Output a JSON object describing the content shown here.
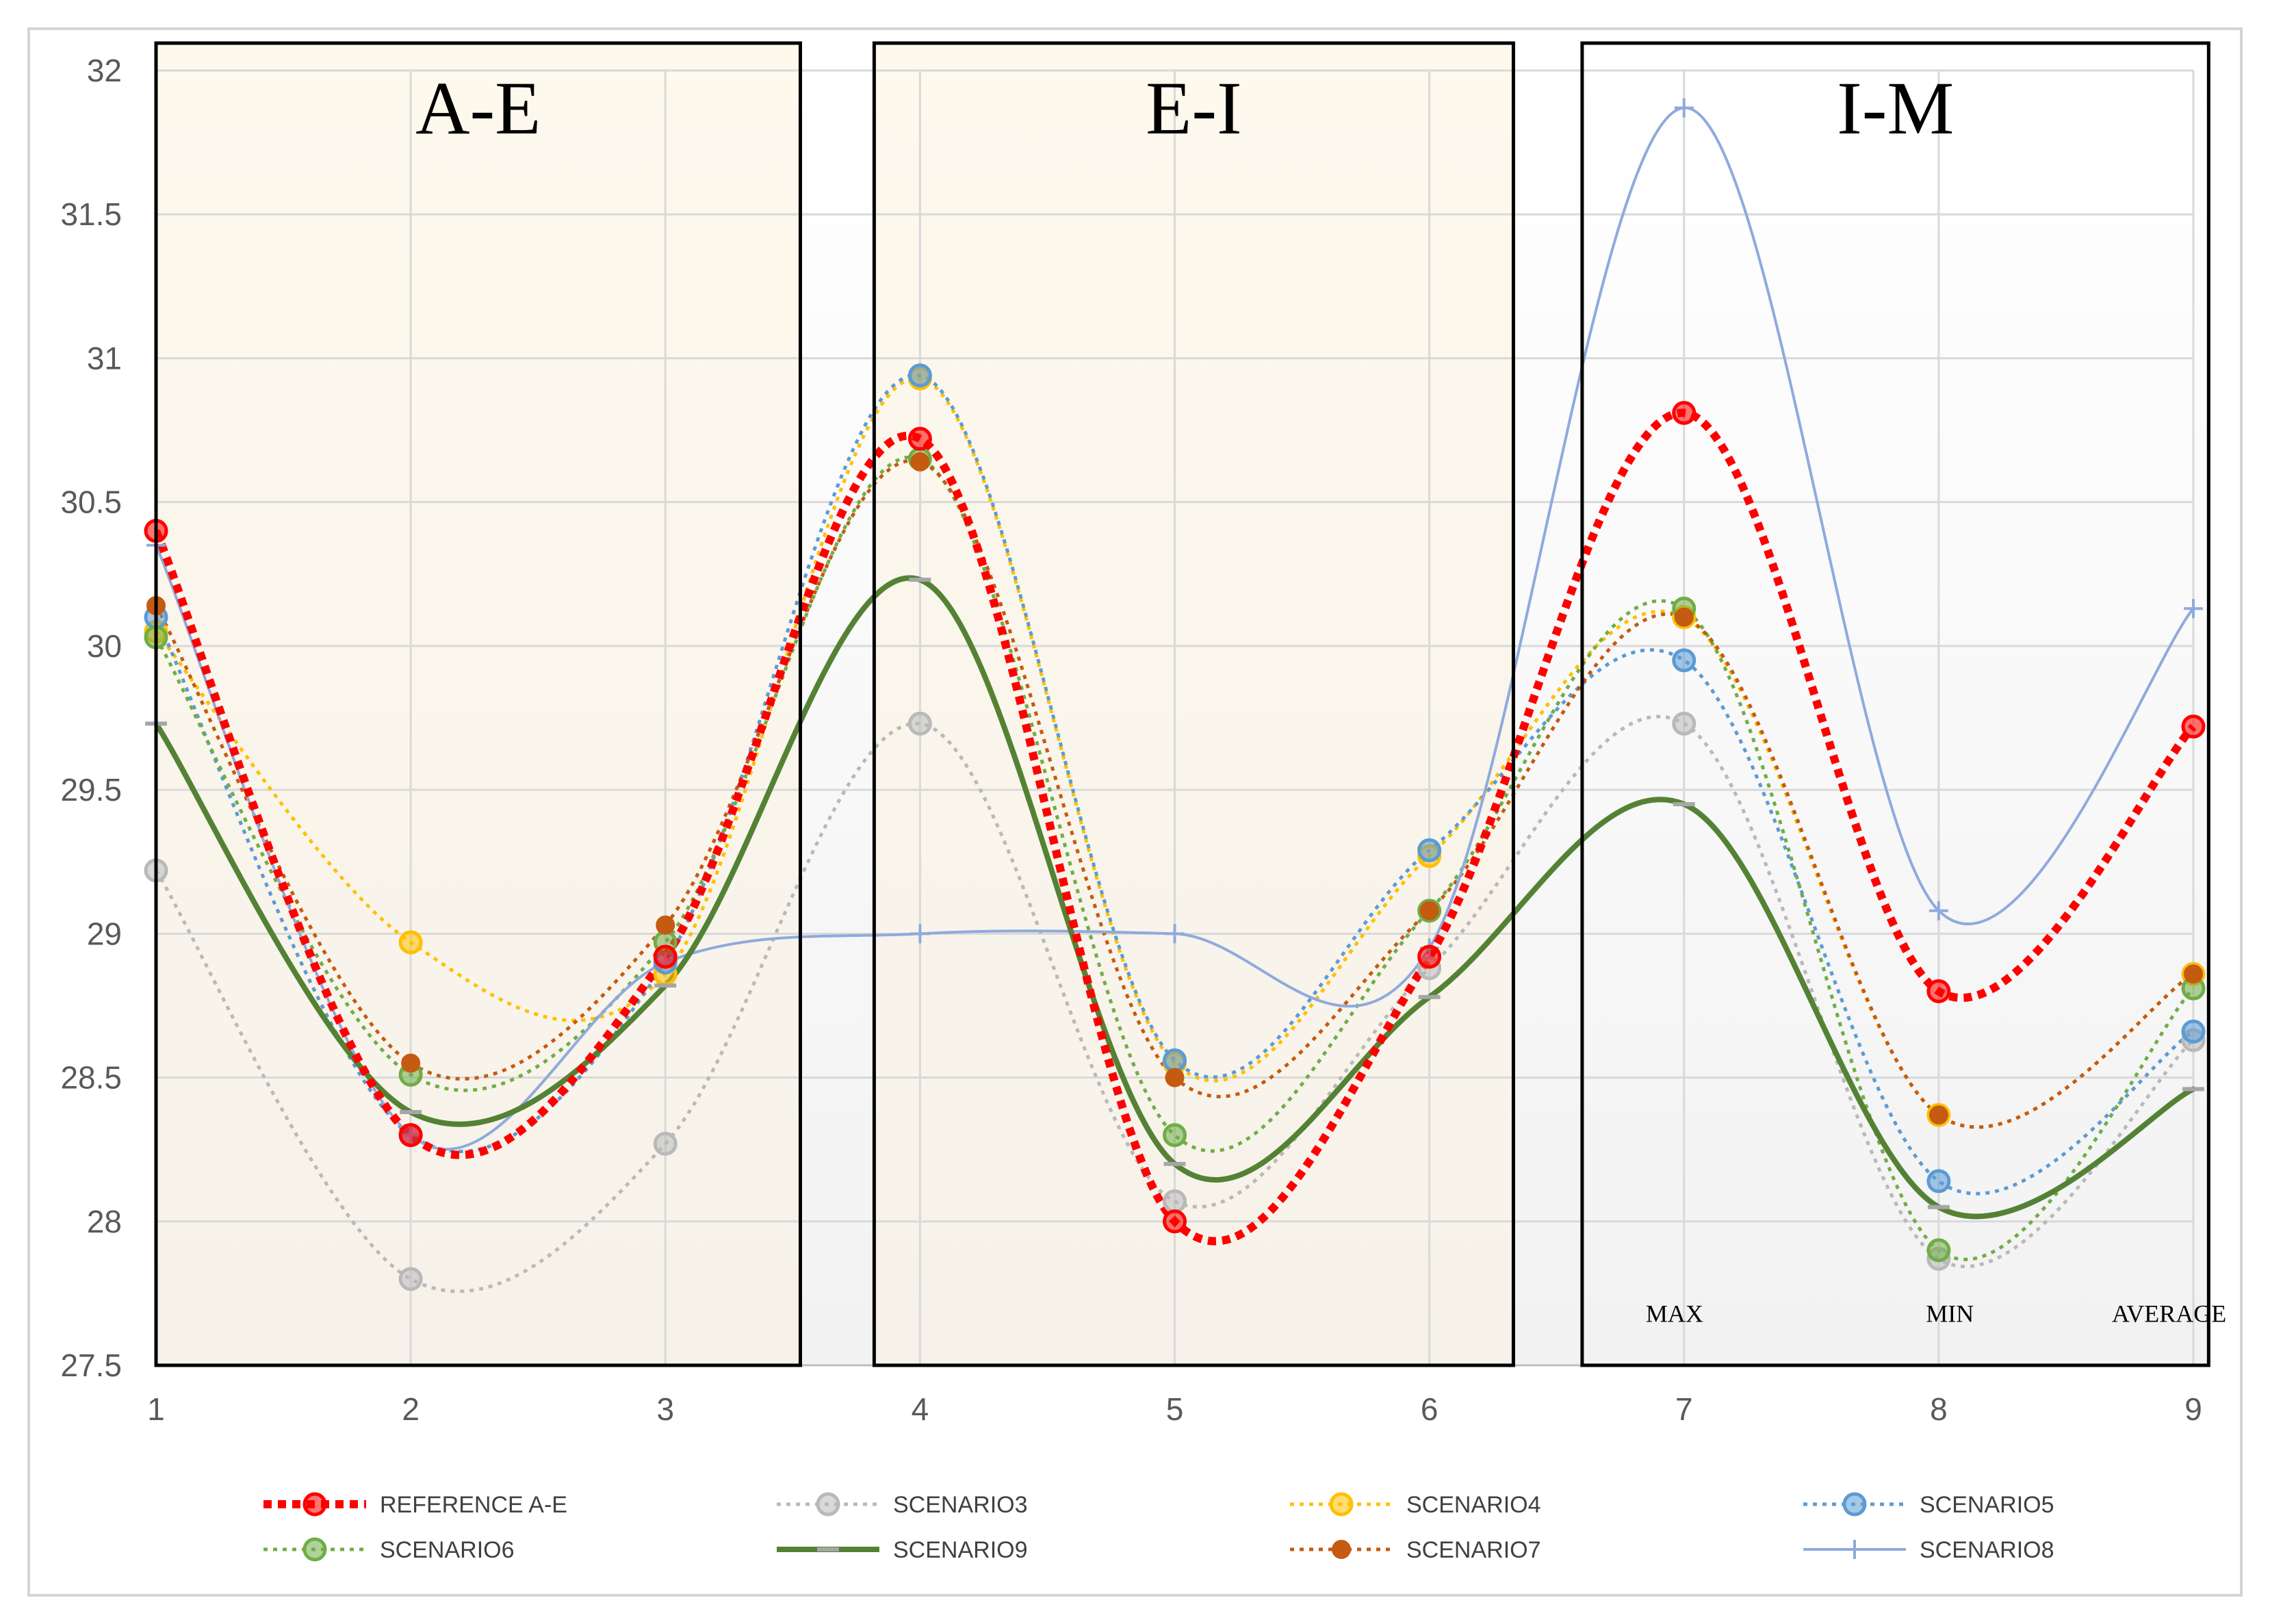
{
  "chart_data": {
    "type": "line",
    "title": "",
    "xlabel": "",
    "ylabel": "",
    "x": [
      1,
      2,
      3,
      4,
      5,
      6,
      7,
      8,
      9
    ],
    "xlim": [
      1,
      9
    ],
    "ylim": [
      27.5,
      32
    ],
    "y_ticks": [
      27.5,
      28,
      28.5,
      29,
      29.5,
      30,
      30.5,
      31,
      31.5,
      32
    ],
    "y_tick_labels": [
      "27.5",
      "28",
      "28.5",
      "29",
      "29.5",
      "30",
      "30.5",
      "31",
      "31.5",
      "32"
    ],
    "x_tick_labels": [
      "1",
      "2",
      "3",
      "4",
      "5",
      "6",
      "7",
      "8",
      "9"
    ],
    "grid": true,
    "smooth": true,
    "legend_position": "bottom",
    "regions": [
      {
        "label": "A-E",
        "x_range": [
          1,
          3.53
        ],
        "shaded": true
      },
      {
        "label": "E-I",
        "x_range": [
          3.82,
          6.33
        ],
        "shaded": true
      },
      {
        "label": "I-M",
        "x_range": [
          6.6,
          9.06
        ],
        "shaded": false
      }
    ],
    "annotations": [
      {
        "text": "MAX",
        "x": 6.85,
        "y": 27.68
      },
      {
        "text": "MIN",
        "x": 7.95,
        "y": 27.68
      },
      {
        "text": "AVERAGE",
        "x": 8.68,
        "y": 27.68
      }
    ],
    "series": [
      {
        "name": "SCENARIO3",
        "color": "#b9b9b9",
        "style": "dotted",
        "marker": "circle",
        "values": [
          29.22,
          27.8,
          28.27,
          29.73,
          28.07,
          28.88,
          29.73,
          27.87,
          28.63
        ]
      },
      {
        "name": "SCENARIO4",
        "color": "#ffc000",
        "style": "dotted",
        "marker": "circle",
        "values": [
          30.05,
          28.97,
          28.86,
          30.93,
          28.55,
          29.27,
          30.1,
          28.37,
          28.86
        ]
      },
      {
        "name": "SCENARIO5",
        "color": "#5b9bd5",
        "style": "dotted",
        "marker": "circle",
        "values": [
          30.1,
          28.3,
          28.9,
          30.94,
          28.56,
          29.29,
          29.95,
          28.14,
          28.66
        ]
      },
      {
        "name": "SCENARIO6",
        "color": "#70ad47",
        "style": "dotted",
        "marker": "circle",
        "values": [
          30.03,
          28.51,
          28.97,
          30.65,
          28.3,
          29.08,
          30.13,
          27.9,
          28.81
        ]
      },
      {
        "name": "SCENARIO7",
        "color": "#c55a11",
        "style": "dotted",
        "marker": "circle-small",
        "values": [
          30.14,
          28.55,
          29.03,
          30.64,
          28.5,
          29.08,
          30.1,
          28.37,
          28.86
        ]
      },
      {
        "name": "SCENARIO8",
        "color": "#8faadc",
        "style": "solid",
        "marker": "plus",
        "values": [
          30.35,
          28.3,
          28.9,
          29.0,
          29.0,
          28.95,
          31.87,
          29.08,
          30.13
        ]
      },
      {
        "name": "SCENARIO9",
        "color": "#548235",
        "style": "solid-thick",
        "marker": "dash",
        "values": [
          29.73,
          28.38,
          28.82,
          30.23,
          28.2,
          28.78,
          29.45,
          28.05,
          28.46
        ]
      },
      {
        "name": "REFERENCE  A-E",
        "color": "#ff0000",
        "style": "dotted-thick",
        "marker": "circle",
        "values": [
          30.4,
          28.3,
          28.92,
          30.72,
          28.0,
          28.92,
          30.81,
          28.8,
          29.72
        ]
      }
    ],
    "legend_order": [
      7,
      0,
      1,
      2,
      3,
      6,
      4,
      5
    ]
  }
}
